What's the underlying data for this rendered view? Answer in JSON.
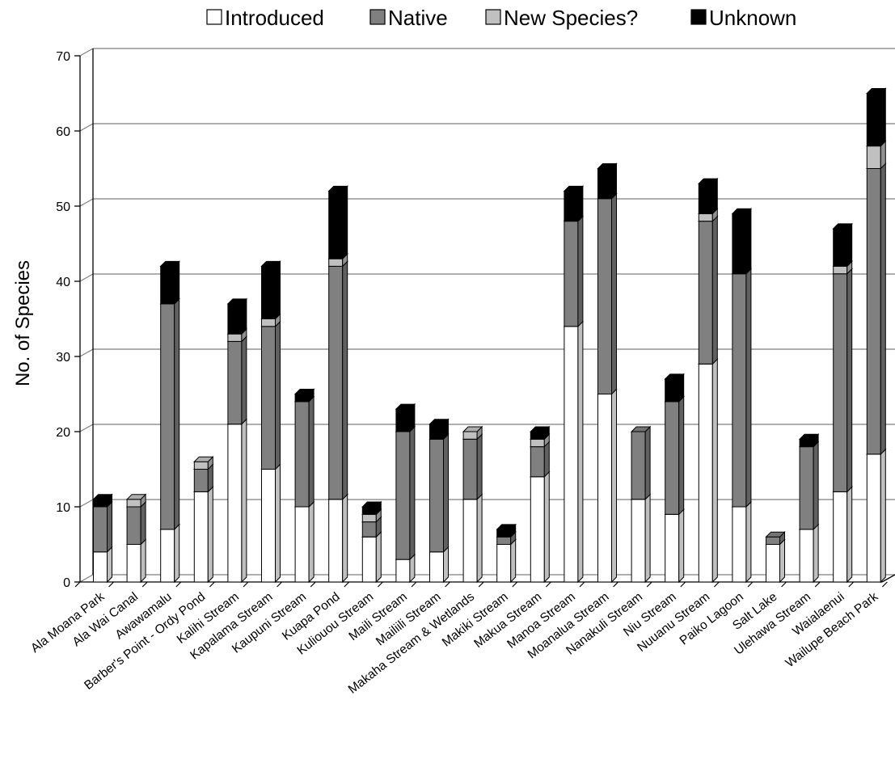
{
  "chart_data": {
    "type": "bar",
    "stacked": true,
    "ylabel": "No. of Species",
    "ylim": [
      0,
      70
    ],
    "yticks": [
      0,
      10,
      20,
      30,
      40,
      50,
      60,
      70
    ],
    "grid": true,
    "legend_placement": "top",
    "categories": [
      "Ala Moana Park",
      "Ala Wai Canal",
      "Awawamalu",
      "Barber's Point - Ordy Pond",
      "Kalihi Stream",
      "Kapalama Stream",
      "Kaupuni Stream",
      "Kuapa Pond",
      "Kuliouou Stream",
      "Maili Stream",
      "Mailiili Stream",
      "Makaha Stream & Wetlands",
      "Makiki Stream",
      "Makua Stream",
      "Manoa Stream",
      "Moanalua Stream",
      "Nanakuli Stream",
      "Niu Stream",
      "Nuuanu Stream",
      "Paiko Lagoon",
      "Salt Lake",
      "Ulehawa Stream",
      "Waialaenui",
      "Wailupe Beach Park"
    ],
    "series": [
      {
        "name": "Introduced",
        "color": "#ffffff",
        "values": [
          4,
          5,
          7,
          12,
          21,
          15,
          10,
          11,
          6,
          3,
          4,
          11,
          5,
          14,
          34,
          25,
          11,
          9,
          29,
          10,
          5,
          7,
          12,
          17
        ]
      },
      {
        "name": "Native",
        "color": "#808080",
        "values": [
          6,
          5,
          30,
          3,
          11,
          19,
          14,
          31,
          2,
          17,
          15,
          8,
          1,
          4,
          14,
          26,
          9,
          15,
          19,
          31,
          1,
          11,
          29,
          38
        ]
      },
      {
        "name": "New Species?",
        "color": "#c0c0c0",
        "values": [
          0,
          1,
          0,
          1,
          1,
          1,
          0,
          1,
          1,
          0,
          0,
          1,
          0,
          1,
          0,
          0,
          0,
          0,
          1,
          0,
          0,
          0,
          1,
          3
        ]
      },
      {
        "name": "Unknown",
        "color": "#000000",
        "values": [
          1,
          0,
          5,
          0,
          4,
          7,
          1,
          9,
          1,
          3,
          2,
          0,
          1,
          1,
          4,
          4,
          0,
          3,
          4,
          8,
          0,
          1,
          5,
          7
        ]
      }
    ]
  }
}
